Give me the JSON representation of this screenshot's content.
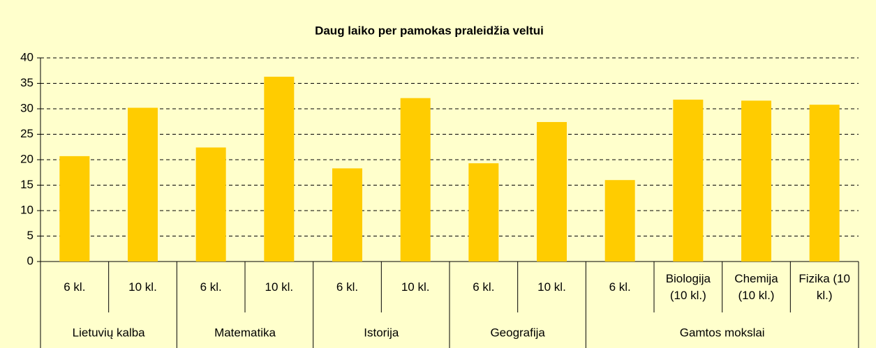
{
  "chart_data": {
    "type": "bar",
    "title": "Daug laiko per pamokas praleidžia veltui",
    "groups": [
      {
        "name": "Lietuvių kalba",
        "categories": [
          "6 kl.",
          "10 kl."
        ]
      },
      {
        "name": "Matematika",
        "categories": [
          "6 kl.",
          "10 kl."
        ]
      },
      {
        "name": "Istorija",
        "categories": [
          "6 kl.",
          "10 kl."
        ]
      },
      {
        "name": "Geografija",
        "categories": [
          "6 kl.",
          "10 kl."
        ]
      },
      {
        "name": "Gamtos mokslai",
        "categories": [
          "6 kl.",
          "Biologija (10 kl.)",
          "Chemija (10 kl.)",
          "Fizika (10 kl.)"
        ]
      }
    ],
    "values": [
      20.7,
      30.2,
      22.4,
      36.3,
      18.3,
      32.1,
      19.3,
      27.4,
      16.0,
      31.8,
      31.6,
      30.8
    ],
    "color": "#ffcc00",
    "ylim": [
      0,
      40
    ],
    "yticks": [
      0,
      5,
      10,
      15,
      20,
      25,
      30,
      35,
      40
    ],
    "grid": true
  }
}
